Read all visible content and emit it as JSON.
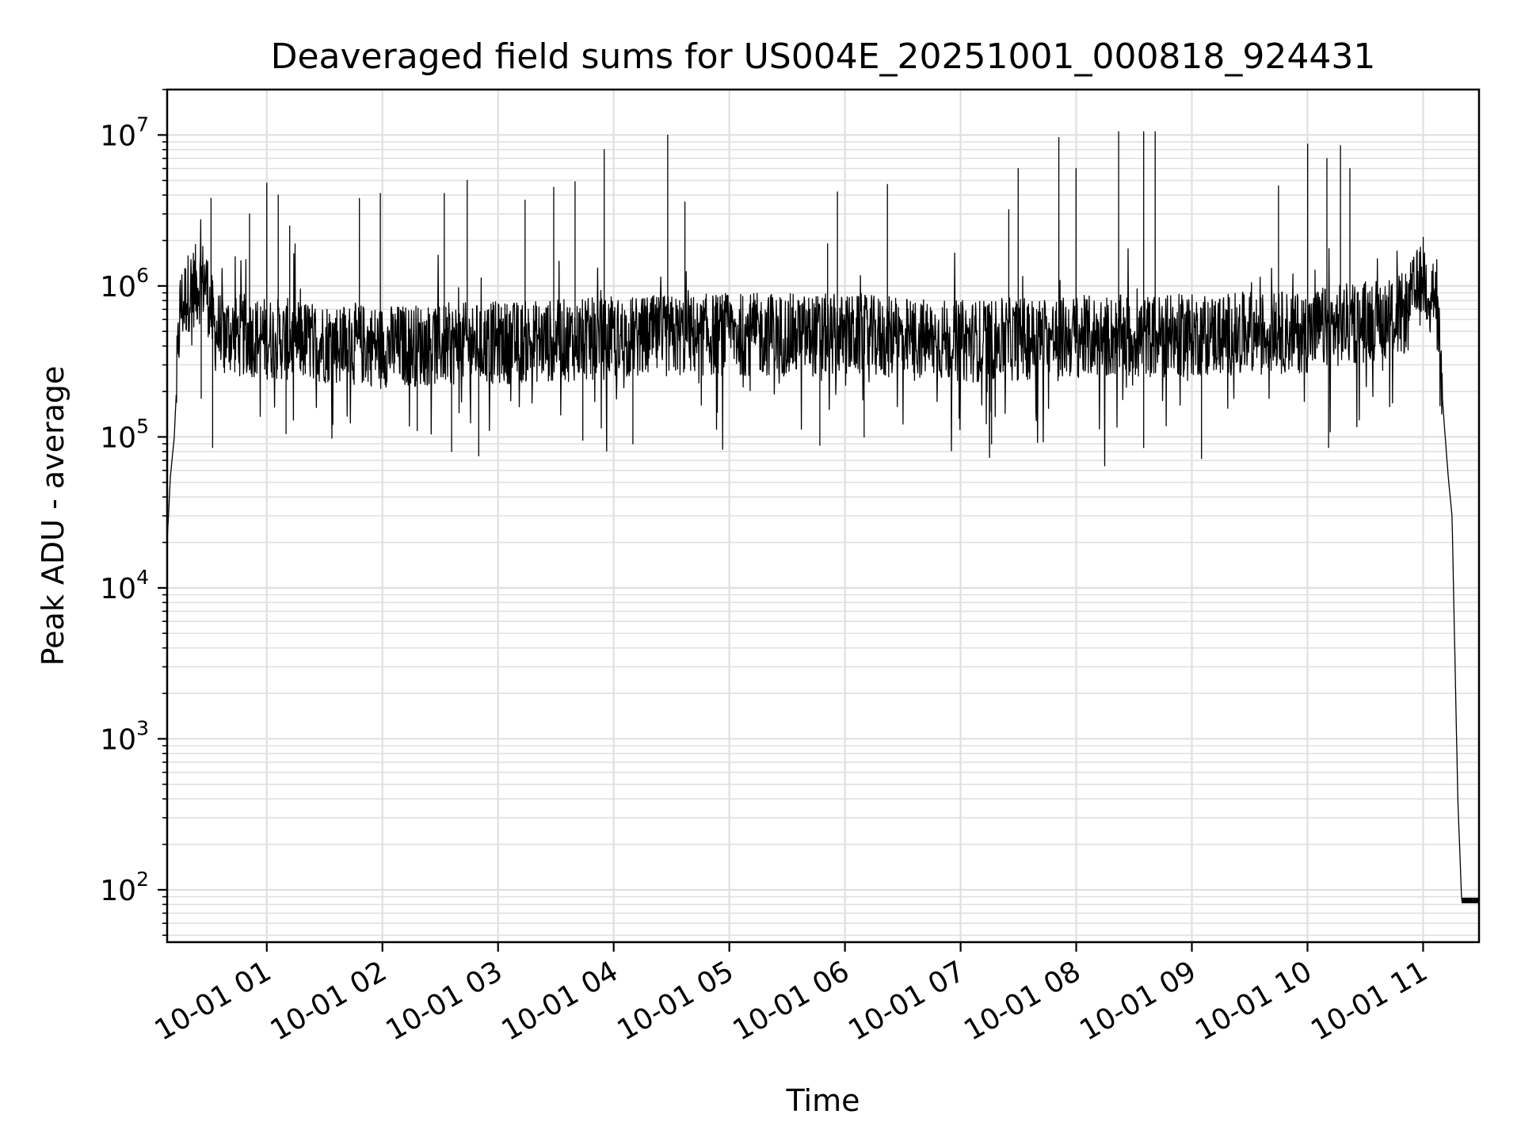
{
  "chart_data": {
    "type": "line",
    "title": "Deaveraged field sums for US004E_20251001_000818_924431",
    "xlabel": "Time",
    "ylabel": "Peak ADU - average",
    "y_scale": "log",
    "xlim": [
      "2025-10-01 00:08:18",
      "2025-10-01 11:29:00"
    ],
    "ylim": [
      45,
      20000000
    ],
    "grid": true,
    "x_ticks": [
      "10-01 01",
      "10-01 02",
      "10-01 03",
      "10-01 04",
      "10-01 05",
      "10-01 06",
      "10-01 07",
      "10-01 08",
      "10-01 09",
      "10-01 10",
      "10-01 11"
    ],
    "y_ticks": [
      {
        "base": "10",
        "exp": "2",
        "value": 100
      },
      {
        "base": "10",
        "exp": "3",
        "value": 1000
      },
      {
        "base": "10",
        "exp": "4",
        "value": 10000
      },
      {
        "base": "10",
        "exp": "5",
        "value": 100000
      },
      {
        "base": "10",
        "exp": "6",
        "value": 1000000
      },
      {
        "base": "10",
        "exp": "7",
        "value": 10000000
      }
    ],
    "line_color": "#000000",
    "grid_color": "#e0e0e0",
    "series": [
      {
        "points": [
          [
            "2025-10-01 00:08:18",
            20000
          ],
          [
            "2025-10-01 00:10:00",
            55000
          ],
          [
            "2025-10-01 00:12:00",
            100000
          ],
          [
            "2025-10-01 00:15:00",
            700000
          ],
          [
            "2025-10-01 00:20:00",
            950000
          ],
          [
            "2025-10-01 00:28:00",
            1100000
          ],
          [
            "2025-10-01 00:33:00",
            500000
          ],
          [
            "2025-10-01 01:00:00",
            450000
          ],
          [
            "2025-10-01 02:00:00",
            400000
          ],
          [
            "2025-10-01 03:00:00",
            420000
          ],
          [
            "2025-10-01 04:00:00",
            450000
          ],
          [
            "2025-10-01 05:00:00",
            480000
          ],
          [
            "2025-10-01 06:00:00",
            470000
          ],
          [
            "2025-10-01 07:00:00",
            430000
          ],
          [
            "2025-10-01 08:00:00",
            460000
          ],
          [
            "2025-10-01 09:00:00",
            470000
          ],
          [
            "2025-10-01 10:00:00",
            500000
          ],
          [
            "2025-10-01 10:50:00",
            650000
          ],
          [
            "2025-10-01 11:00:00",
            1100000
          ],
          [
            "2025-10-01 11:06:00",
            900000
          ],
          [
            "2025-10-01 11:11:00",
            120000
          ],
          [
            "2025-10-01 11:13:00",
            55000
          ],
          [
            "2025-10-01 11:15:00",
            30000
          ],
          [
            "2025-10-01 11:18:00",
            400
          ],
          [
            "2025-10-01 11:20:00",
            85
          ],
          [
            "2025-10-01 11:29:00",
            85
          ]
        ],
        "spikes": [
          [
            "2025-10-01 00:31:00",
            3800000
          ],
          [
            "2025-10-01 00:51:00",
            3000000
          ],
          [
            "2025-10-01 01:00:00",
            4800000
          ],
          [
            "2025-10-01 01:06:00",
            4000000
          ],
          [
            "2025-10-01 01:12:00",
            2500000
          ],
          [
            "2025-10-01 01:48:00",
            3800000
          ],
          [
            "2025-10-01 01:59:00",
            4100000
          ],
          [
            "2025-10-01 02:32:00",
            4100000
          ],
          [
            "2025-10-01 02:44:00",
            5000000
          ],
          [
            "2025-10-01 03:14:00",
            3700000
          ],
          [
            "2025-10-01 03:29:00",
            4500000
          ],
          [
            "2025-10-01 03:40:00",
            4900000
          ],
          [
            "2025-10-01 03:55:00",
            8000000
          ],
          [
            "2025-10-01 04:28:00",
            10000000
          ],
          [
            "2025-10-01 04:37:00",
            3600000
          ],
          [
            "2025-10-01 05:51:00",
            1900000
          ],
          [
            "2025-10-01 05:56:00",
            4200000
          ],
          [
            "2025-10-01 06:22:00",
            4700000
          ],
          [
            "2025-10-01 07:25:00",
            3200000
          ],
          [
            "2025-10-01 07:30:00",
            6000000
          ],
          [
            "2025-10-01 07:51:00",
            9600000
          ],
          [
            "2025-10-01 08:00:00",
            6000000
          ],
          [
            "2025-10-01 08:22:00",
            10500000
          ],
          [
            "2025-10-01 08:35:00",
            10500000
          ],
          [
            "2025-10-01 08:41:00",
            10500000
          ],
          [
            "2025-10-01 09:45:00",
            4600000
          ],
          [
            "2025-10-01 10:00:00",
            8700000
          ],
          [
            "2025-10-01 10:10:00",
            7000000
          ],
          [
            "2025-10-01 10:17:00",
            8500000
          ],
          [
            "2025-10-01 10:22:00",
            6000000
          ],
          [
            "2025-10-01 11:00:00",
            2100000
          ]
        ],
        "dips": [
          [
            "2025-10-01 00:26:00",
            180000
          ],
          [
            "2025-10-01 00:32:00",
            85000
          ],
          [
            "2025-10-01 01:10:00",
            105000
          ],
          [
            "2025-10-01 02:18:00",
            110000
          ],
          [
            "2025-10-01 02:36:00",
            80000
          ],
          [
            "2025-10-01 02:50:00",
            75000
          ],
          [
            "2025-10-01 03:44:00",
            95000
          ],
          [
            "2025-10-01 04:10:00",
            90000
          ],
          [
            "2025-10-01 05:47:00",
            88000
          ],
          [
            "2025-10-01 06:10:00",
            100000
          ],
          [
            "2025-10-01 07:16:00",
            90000
          ],
          [
            "2025-10-01 08:35:00",
            85000
          ],
          [
            "2025-10-01 09:05:00",
            72000
          ],
          [
            "2025-10-01 10:11:00",
            85000
          ]
        ]
      }
    ]
  }
}
